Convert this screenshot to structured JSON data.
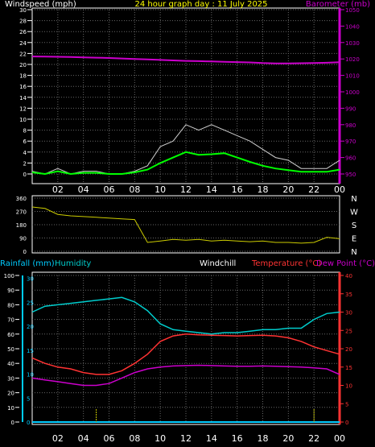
{
  "colors": {
    "background": "#000000",
    "axis": "#ffffff",
    "grid": "#666666",
    "wind": "#ffffff",
    "gust": "#cfcfcf",
    "avg_wind": "#00ff00",
    "barometer": "#cc00cc",
    "direction": "#cccc00",
    "rainfall": "#00ccff",
    "humidity": "#00cccc",
    "temperature": "#ff3333",
    "dewpoint": "#cc00cc",
    "windchill": "#ffffff",
    "rain_marker": "#cccc00",
    "title": "#ffff00"
  },
  "chart_data": [
    {
      "type": "line",
      "title": "24 hour graph day : 11 July 2025",
      "ylabel_left": "Windspeed (mph)",
      "ylabel_right": "Barometer (mb)",
      "x_tick_labels": [
        "02",
        "04",
        "06",
        "08",
        "10",
        "12",
        "14",
        "16",
        "18",
        "20",
        "22",
        "00"
      ],
      "y_left_ticks": [
        0,
        2,
        4,
        6,
        8,
        10,
        12,
        14,
        16,
        18,
        20,
        22,
        24,
        26,
        28,
        30
      ],
      "y_right_ticks": [
        950,
        960,
        970,
        980,
        990,
        1000,
        1010,
        1020,
        1030,
        1040,
        1050
      ],
      "ylim_left": [
        0,
        30
      ],
      "ylim_right": [
        950,
        1050
      ],
      "grid": true,
      "hours": [
        0,
        1,
        2,
        3,
        4,
        5,
        6,
        7,
        8,
        9,
        10,
        11,
        12,
        13,
        14,
        15,
        16,
        17,
        18,
        19,
        20,
        21,
        22,
        23,
        24
      ],
      "series": [
        {
          "name": "Gust",
          "values": [
            0.5,
            0,
            1,
            0,
            0.5,
            0.5,
            0,
            0,
            0.5,
            1.5,
            5,
            6,
            9,
            8,
            9,
            8,
            7,
            6,
            4.5,
            3,
            2.5,
            1,
            1,
            1,
            2.5
          ]
        },
        {
          "name": "Windspeed",
          "values": [
            0.3,
            0,
            0.5,
            0,
            0.2,
            0.2,
            0,
            0,
            0.3,
            0.8,
            2,
            3,
            4,
            3.5,
            3.6,
            3.8,
            3,
            2.2,
            1.5,
            1,
            0.7,
            0.4,
            0.4,
            0.4,
            0.8
          ]
        },
        {
          "name": "Barometer",
          "values": [
            1021.5,
            1021.4,
            1021.3,
            1021.2,
            1021.0,
            1020.8,
            1020.6,
            1020.3,
            1020.0,
            1019.7,
            1019.4,
            1019.1,
            1018.8,
            1018.7,
            1018.5,
            1018.3,
            1018.1,
            1017.9,
            1017.5,
            1017.3,
            1017.3,
            1017.4,
            1017.5,
            1017.7,
            1018.0
          ]
        }
      ]
    },
    {
      "type": "line",
      "y_left_ticks": [
        0,
        90,
        180,
        270,
        360
      ],
      "y_right_ticks": [
        "N",
        "W",
        "S",
        "E",
        "N"
      ],
      "ylim": [
        0,
        360
      ],
      "hours": [
        0,
        1,
        2,
        3,
        4,
        5,
        6,
        7,
        8,
        9,
        10,
        11,
        12,
        13,
        14,
        15,
        16,
        17,
        18,
        19,
        20,
        21,
        22,
        23,
        24
      ],
      "series": [
        {
          "name": "Wind Direction",
          "values": [
            300,
            290,
            250,
            240,
            235,
            230,
            225,
            220,
            215,
            60,
            70,
            80,
            75,
            80,
            70,
            75,
            70,
            65,
            70,
            60,
            60,
            55,
            60,
            95,
            85
          ]
        }
      ]
    },
    {
      "type": "line",
      "legend": [
        "Rainfall (mm)",
        "Humidity",
        "Windchill",
        "Temperature (°C)",
        "Dew Point (°C)"
      ],
      "x_tick_labels": [
        "02",
        "04",
        "06",
        "08",
        "10",
        "12",
        "14",
        "16",
        "18",
        "20",
        "22",
        "00"
      ],
      "y_humidity_ticks": [
        0,
        10,
        20,
        30,
        40,
        50,
        60,
        70,
        80,
        90,
        100
      ],
      "y_rain_ticks": [
        0,
        5,
        10,
        15,
        20,
        25,
        30
      ],
      "y_temp_ticks": [
        0,
        5,
        10,
        15,
        20,
        25,
        30,
        35,
        40
      ],
      "ylim_humidity": [
        0,
        100
      ],
      "ylim_temp": [
        0,
        40
      ],
      "hours": [
        0,
        1,
        2,
        3,
        4,
        5,
        6,
        7,
        8,
        9,
        10,
        11,
        12,
        13,
        14,
        15,
        16,
        17,
        18,
        19,
        20,
        21,
        22,
        23,
        24
      ],
      "series": [
        {
          "name": "Humidity",
          "values": [
            75,
            79,
            80,
            81,
            82,
            83,
            84,
            85,
            82,
            76,
            67,
            63,
            62,
            61,
            60,
            61,
            61,
            62,
            63,
            63,
            64,
            64,
            70,
            74,
            75
          ]
        },
        {
          "name": "Temperature",
          "values": [
            17.5,
            16,
            15,
            14.5,
            13.5,
            13,
            13,
            14,
            16,
            18.5,
            22,
            23.5,
            24,
            23.8,
            23.7,
            23.6,
            23.5,
            23.6,
            23.7,
            23.5,
            23,
            22,
            20.5,
            19.5,
            18.5
          ]
        },
        {
          "name": "Dew Point",
          "values": [
            12,
            11.5,
            11,
            10.5,
            10,
            10,
            10.5,
            12,
            13.5,
            14.5,
            15,
            15.3,
            15.4,
            15.5,
            15.4,
            15.3,
            15.2,
            15.2,
            15.3,
            15.2,
            15.1,
            15,
            14.8,
            14.5,
            13
          ]
        },
        {
          "name": "Rainfall",
          "values": [
            0,
            0,
            0,
            0,
            0,
            0,
            0,
            0,
            0,
            0,
            0,
            0,
            0,
            0,
            0,
            0,
            0,
            0,
            0,
            0,
            0,
            0,
            0,
            0,
            0
          ]
        }
      ],
      "rain_markers_hours": [
        5,
        22
      ]
    }
  ]
}
